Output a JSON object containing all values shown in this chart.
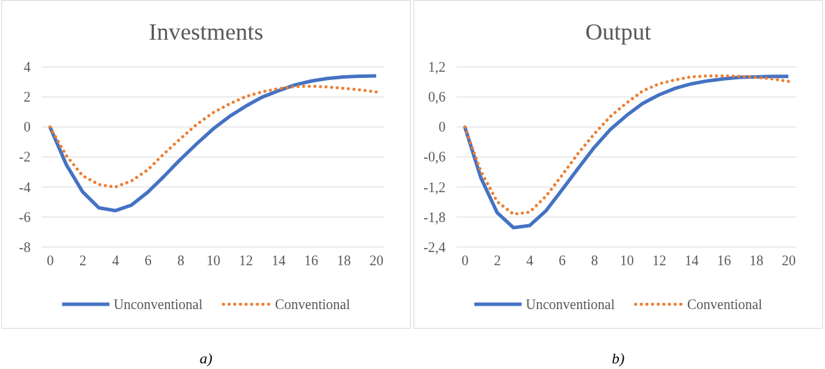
{
  "chart_data": [
    {
      "type": "line",
      "title": "Investments",
      "x": [
        0,
        1,
        2,
        3,
        4,
        5,
        6,
        7,
        8,
        9,
        10,
        11,
        12,
        13,
        14,
        15,
        16,
        17,
        18,
        19,
        20
      ],
      "xlim": [
        -0.5,
        20.5
      ],
      "xticks": [
        0,
        2,
        4,
        6,
        8,
        10,
        12,
        14,
        16,
        18,
        20
      ],
      "ylim": [
        -8,
        4
      ],
      "yticks": [
        -8,
        -6,
        -4,
        -2,
        0,
        2,
        4
      ],
      "grid": "y",
      "legend": "bottom",
      "marker": "none",
      "annotations": [
        "a)"
      ],
      "series": [
        {
          "name": "Unconventional",
          "color": "#4472c4",
          "line_style": "solid",
          "values": [
            0,
            -2.5,
            -4.31,
            -5.38,
            -5.57,
            -5.2,
            -4.34,
            -3.28,
            -2.16,
            -1.12,
            -0.14,
            0.69,
            1.38,
            1.98,
            2.41,
            2.79,
            3.05,
            3.22,
            3.33,
            3.38,
            3.4
          ]
        },
        {
          "name": "Conventional",
          "color": "#ed7d31",
          "line_style": "dotted",
          "values": [
            0,
            -1.9,
            -3.24,
            -3.83,
            -4.0,
            -3.59,
            -2.85,
            -1.78,
            -0.78,
            0.17,
            0.95,
            1.53,
            2.02,
            2.33,
            2.55,
            2.69,
            2.71,
            2.66,
            2.57,
            2.47,
            2.33
          ]
        }
      ]
    },
    {
      "type": "line",
      "title": "Output",
      "x": [
        0,
        1,
        2,
        3,
        4,
        5,
        6,
        7,
        8,
        9,
        10,
        11,
        12,
        13,
        14,
        15,
        16,
        17,
        18,
        19,
        20
      ],
      "xlim": [
        -0.5,
        20.5
      ],
      "xticks": [
        0,
        2,
        4,
        6,
        8,
        10,
        12,
        14,
        16,
        18,
        20
      ],
      "ylim": [
        -2.4,
        1.2
      ],
      "yticks": [
        {
          "value": -2.4,
          "label": "-2,4"
        },
        {
          "value": -1.8,
          "label": "-1,8"
        },
        {
          "value": -1.2,
          "label": "-1,2"
        },
        {
          "value": -0.6,
          "label": "-0,6"
        },
        0,
        {
          "value": 0.6,
          "label": "0,6"
        },
        {
          "value": 1.2,
          "label": "1,2"
        }
      ],
      "grid": "y",
      "legend": "bottom",
      "marker": "none",
      "annotations": [
        "b)"
      ],
      "series": [
        {
          "name": "Unconventional",
          "color": "#4472c4",
          "line_style": "solid",
          "values": [
            0,
            -1.02,
            -1.71,
            -2.01,
            -1.97,
            -1.68,
            -1.26,
            -0.83,
            -0.41,
            -0.05,
            0.23,
            0.47,
            0.64,
            0.77,
            0.86,
            0.92,
            0.96,
            0.99,
            1.0,
            1.01,
            1.01
          ]
        },
        {
          "name": "Conventional",
          "color": "#ed7d31",
          "line_style": "dotted",
          "values": [
            0,
            -0.89,
            -1.49,
            -1.74,
            -1.7,
            -1.39,
            -0.97,
            -0.53,
            -0.14,
            0.21,
            0.48,
            0.72,
            0.86,
            0.94,
            1.0,
            1.02,
            1.02,
            1.01,
            0.99,
            0.96,
            0.91
          ]
        }
      ]
    }
  ]
}
